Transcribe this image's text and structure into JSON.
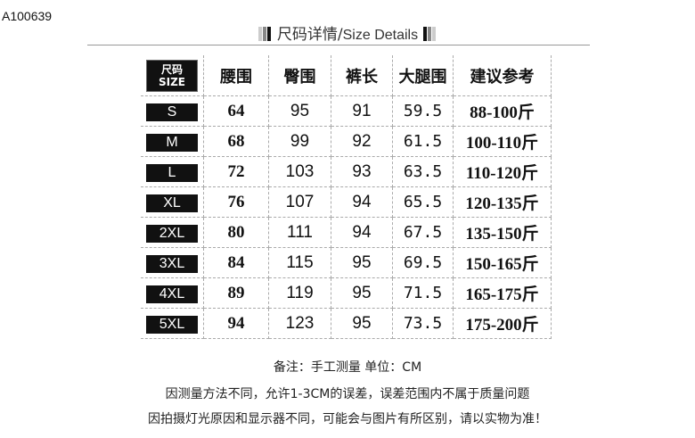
{
  "code": "A100639",
  "title": {
    "zh": "尺码详情/",
    "en": "Size Details"
  },
  "table": {
    "size_label_zh": "尺码",
    "size_label_en": "SIZE",
    "headers": [
      "腰围",
      "臀围",
      "裤长",
      "大腿围",
      "建议参考"
    ],
    "rows": [
      [
        "S",
        "64",
        "95",
        "91",
        "59.5",
        "88-100斤"
      ],
      [
        "M",
        "68",
        "99",
        "92",
        "61.5",
        "100-110斤"
      ],
      [
        "L",
        "72",
        "103",
        "93",
        "63.5",
        "110-120斤"
      ],
      [
        "XL",
        "76",
        "107",
        "94",
        "65.5",
        "120-135斤"
      ],
      [
        "2XL",
        "80",
        "111",
        "94",
        "67.5",
        "135-150斤"
      ],
      [
        "3XL",
        "84",
        "115",
        "95",
        "69.5",
        "150-165斤"
      ],
      [
        "4XL",
        "89",
        "119",
        "95",
        "71.5",
        "165-175斤"
      ],
      [
        "5XL",
        "94",
        "123",
        "95",
        "73.5",
        "175-200斤"
      ]
    ]
  },
  "notes": [
    "备注：手工测量  单位：CM",
    "因测量方法不同，允许1-3CM的误差，误差范围内不属于质量问题",
    "因拍摄灯光原因和显示器不同，可能会与图片有所区别，请以实物为准！"
  ]
}
